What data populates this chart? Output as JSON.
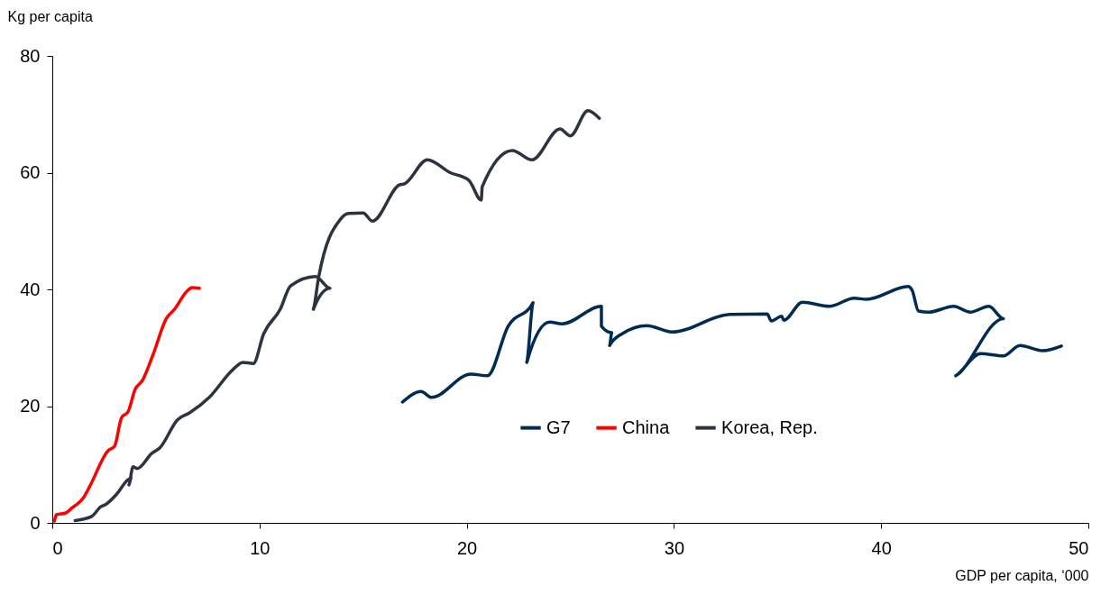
{
  "chart_data": {
    "type": "line",
    "xlabel": "GDP per capita, ‘000",
    "ylabel": "Kg per capita",
    "xlim": [
      0,
      50
    ],
    "xticks": [
      0,
      10,
      20,
      30,
      40,
      50
    ],
    "ylim": [
      0,
      80
    ],
    "yticks": [
      0,
      20,
      40,
      60,
      80
    ],
    "grid": false,
    "legend": "bottom",
    "line_style": "solid",
    "marker": "none",
    "series": [
      {
        "name": "G7",
        "color": "#002b52",
        "x": [
          16.9,
          17.8,
          18.3,
          20.2,
          21.0,
          22.0,
          23.2,
          22.9,
          24.0,
          24.6,
          26.5,
          26.5,
          27.0,
          26.9,
          27.5,
          28.7,
          29.9,
          32.7,
          34.5,
          34.7,
          35.2,
          35.3,
          36.2,
          37.5,
          38.7,
          39.3,
          41.3,
          41.5,
          41.8,
          42.3,
          43.5,
          44.3,
          45.2,
          45.9,
          43.6,
          44.8,
          45.9,
          46.7,
          47.8,
          48.7
        ],
        "values": [
          20.7,
          22.5,
          21.5,
          25.5,
          25.2,
          33.7,
          37.7,
          27.5,
          34.4,
          34.1,
          37.1,
          33.7,
          32.6,
          30.4,
          32.4,
          33.8,
          32.7,
          35.7,
          35.8,
          34.6,
          35.4,
          34.7,
          37.8,
          37.1,
          38.5,
          38.3,
          40.5,
          39.8,
          36.3,
          36.1,
          37.1,
          36.1,
          37.1,
          35.0,
          25.2,
          29.0,
          28.6,
          30.4,
          29.5,
          30.3
        ]
      },
      {
        "name": "China",
        "color": "#ff0000",
        "x": [
          0.1,
          0.2,
          0.65,
          0.96,
          1.26,
          1.5,
          1.8,
          2.7,
          3.0,
          3.35,
          3.65,
          4.0,
          4.35,
          4.87,
          5.5,
          5.9,
          6.5,
          6.75,
          7.1
        ],
        "values": [
          0.3,
          1.4,
          1.7,
          2.6,
          3.4,
          4.3,
          6.2,
          12.4,
          13.1,
          18.1,
          19.0,
          22.9,
          24.4,
          28.9,
          35.0,
          36.6,
          39.7,
          40.3,
          40.2
        ]
      },
      {
        "name": "Korea, Rep.",
        "color": "#2b3440",
        "x": [
          1.1,
          1.9,
          2.35,
          2.55,
          3.1,
          3.65,
          3.8,
          3.7,
          3.9,
          4.1,
          4.8,
          5.2,
          6.05,
          6.6,
          7.6,
          8.7,
          9.2,
          9.7,
          10.2,
          11.0,
          11.5,
          12.7,
          13.4,
          12.6,
          12.85,
          13.9,
          14.3,
          15.0,
          15.45,
          16.75,
          17.0,
          18.1,
          19.2,
          20.1,
          20.7,
          20.75,
          22.2,
          23.15,
          24.5,
          25.0,
          25.85,
          26.4
        ],
        "values": [
          0.4,
          1.1,
          2.8,
          3.1,
          4.9,
          7.4,
          7.7,
          6.5,
          9.6,
          9.3,
          11.9,
          12.9,
          17.7,
          18.8,
          21.6,
          26.2,
          27.5,
          27.3,
          32.4,
          36.6,
          40.6,
          42.2,
          40.2,
          36.6,
          42.0,
          52.0,
          53.0,
          53.1,
          51.7,
          57.9,
          58.1,
          62.2,
          60.0,
          58.7,
          55.3,
          57.6,
          63.8,
          62.2,
          67.5,
          66.3,
          70.6,
          69.3
        ]
      }
    ]
  }
}
